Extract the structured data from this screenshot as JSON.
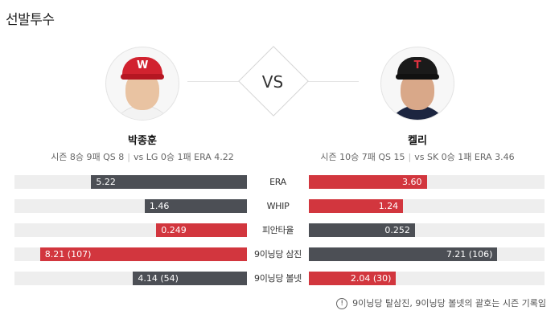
{
  "section_title": "선발투수",
  "vs_label": "VS",
  "players": {
    "left": {
      "name": "박종훈",
      "season_stats": "시즌 8승 9패 QS 8",
      "vs_stats": "vs LG 0승 1패 ERA 4.22",
      "cap_logo": "W",
      "cap_color": "#d1222f"
    },
    "right": {
      "name": "켈리",
      "season_stats": "시즌 10승 7패 QS 15",
      "vs_stats": "vs SK 0승 1패 ERA 3.46",
      "cap_logo": "T",
      "cap_color": "#1a1a1a"
    }
  },
  "colors": {
    "better": "#d2363e",
    "worse": "#4c4f55",
    "track": "#eeeeee"
  },
  "comparison": [
    {
      "label": "ERA",
      "left": {
        "text": "5.22",
        "fraction": 0.67,
        "color": "gray"
      },
      "right": {
        "text": "3.60",
        "fraction": 0.5,
        "color": "red"
      }
    },
    {
      "label": "WHIP",
      "left": {
        "text": "1.46",
        "fraction": 0.44,
        "color": "gray"
      },
      "right": {
        "text": "1.24",
        "fraction": 0.4,
        "color": "red"
      }
    },
    {
      "label": "피안타율",
      "left": {
        "text": "0.249",
        "fraction": 0.39,
        "color": "red"
      },
      "right": {
        "text": "0.252",
        "fraction": 0.45,
        "color": "gray"
      }
    },
    {
      "label": "9이닝당 삼진",
      "left": {
        "text": "8.21 (107)",
        "fraction": 0.89,
        "color": "red"
      },
      "right": {
        "text": "7.21 (106)",
        "fraction": 0.8,
        "color": "gray"
      }
    },
    {
      "label": "9이닝당 볼넷",
      "left": {
        "text": "4.14 (54)",
        "fraction": 0.49,
        "color": "gray"
      },
      "right": {
        "text": "2.04 (30)",
        "fraction": 0.37,
        "color": "red"
      }
    }
  ],
  "footnote": "9이닝당 탈삼진, 9이닝당 볼넷의 괄호는 시즌 기록임",
  "footnote_icon": "!"
}
